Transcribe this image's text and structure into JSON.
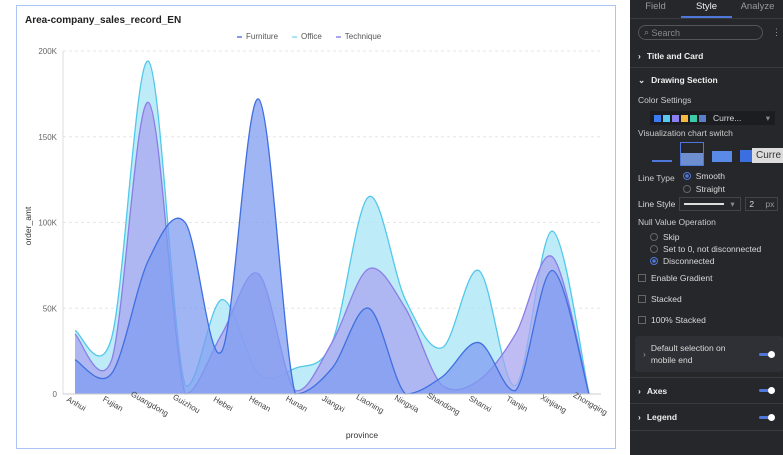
{
  "chart_data": {
    "type": "area",
    "title": "Area-company_sales_record_EN",
    "xlabel": "province",
    "ylabel": "order_amt",
    "ylim": [
      0,
      200000
    ],
    "yticks": [
      "0",
      "50K",
      "100K",
      "150K",
      "200K"
    ],
    "categories": [
      "Anhui",
      "Fujian",
      "Guangdong",
      "Guizhou",
      "Hebei",
      "Henan",
      "Hunan",
      "Jiangxi",
      "Liaoning",
      "Ningxia",
      "Shandong",
      "Shanxi",
      "Tianjin",
      "Xinjiang",
      "Zhongqing"
    ],
    "series": [
      {
        "name": "Office",
        "color": "#a8e4f5",
        "stroke": "#52c8ea",
        "values": [
          37000,
          33000,
          194000,
          5000,
          55000,
          12000,
          15000,
          30000,
          115000,
          55000,
          27000,
          72000,
          5000,
          95000,
          0
        ]
      },
      {
        "name": "Technique",
        "color": "#a9a6f0",
        "stroke": "#8a7de6",
        "values": [
          35000,
          20000,
          170000,
          0,
          35000,
          70000,
          2000,
          30000,
          73000,
          50000,
          5000,
          8000,
          35000,
          80000,
          0
        ]
      },
      {
        "name": "Furniture",
        "color": "#7f9cf0",
        "stroke": "#3f6fe0",
        "values": [
          20000,
          12000,
          78000,
          100000,
          25000,
          172000,
          0,
          15000,
          50000,
          0,
          10000,
          30000,
          2000,
          72000,
          0
        ]
      }
    ],
    "legend": "top-center"
  },
  "panel": {
    "tabs": [
      "Field",
      "Style",
      "Analyze"
    ],
    "search_placeholder": "Search",
    "title_card": "Title and Card",
    "drawing": "Drawing Section",
    "color_settings": "Color Settings",
    "palette": [
      "#3b7af5",
      "#5bc8f0",
      "#8b7ef0",
      "#f5b942",
      "#3ec9a7",
      "#5a7fc8"
    ],
    "palette_label": "Curre...",
    "tooltip": "Curre",
    "viz_switch": "Visualization chart switch",
    "line_type": "Line Type",
    "smooth": "Smooth",
    "straight": "Straight",
    "line_style": "Line Style",
    "line_width": "2",
    "px": "px",
    "null_op": "Null Value Operation",
    "skip": "Skip",
    "set0": "Set to 0, not disconnected",
    "disc": "Disconnected",
    "gradient": "Enable Gradient",
    "stacked": "Stacked",
    "stacked100": "100% Stacked",
    "mobile": "Default selection on mobile end",
    "axes": "Axes",
    "legend": "Legend"
  }
}
